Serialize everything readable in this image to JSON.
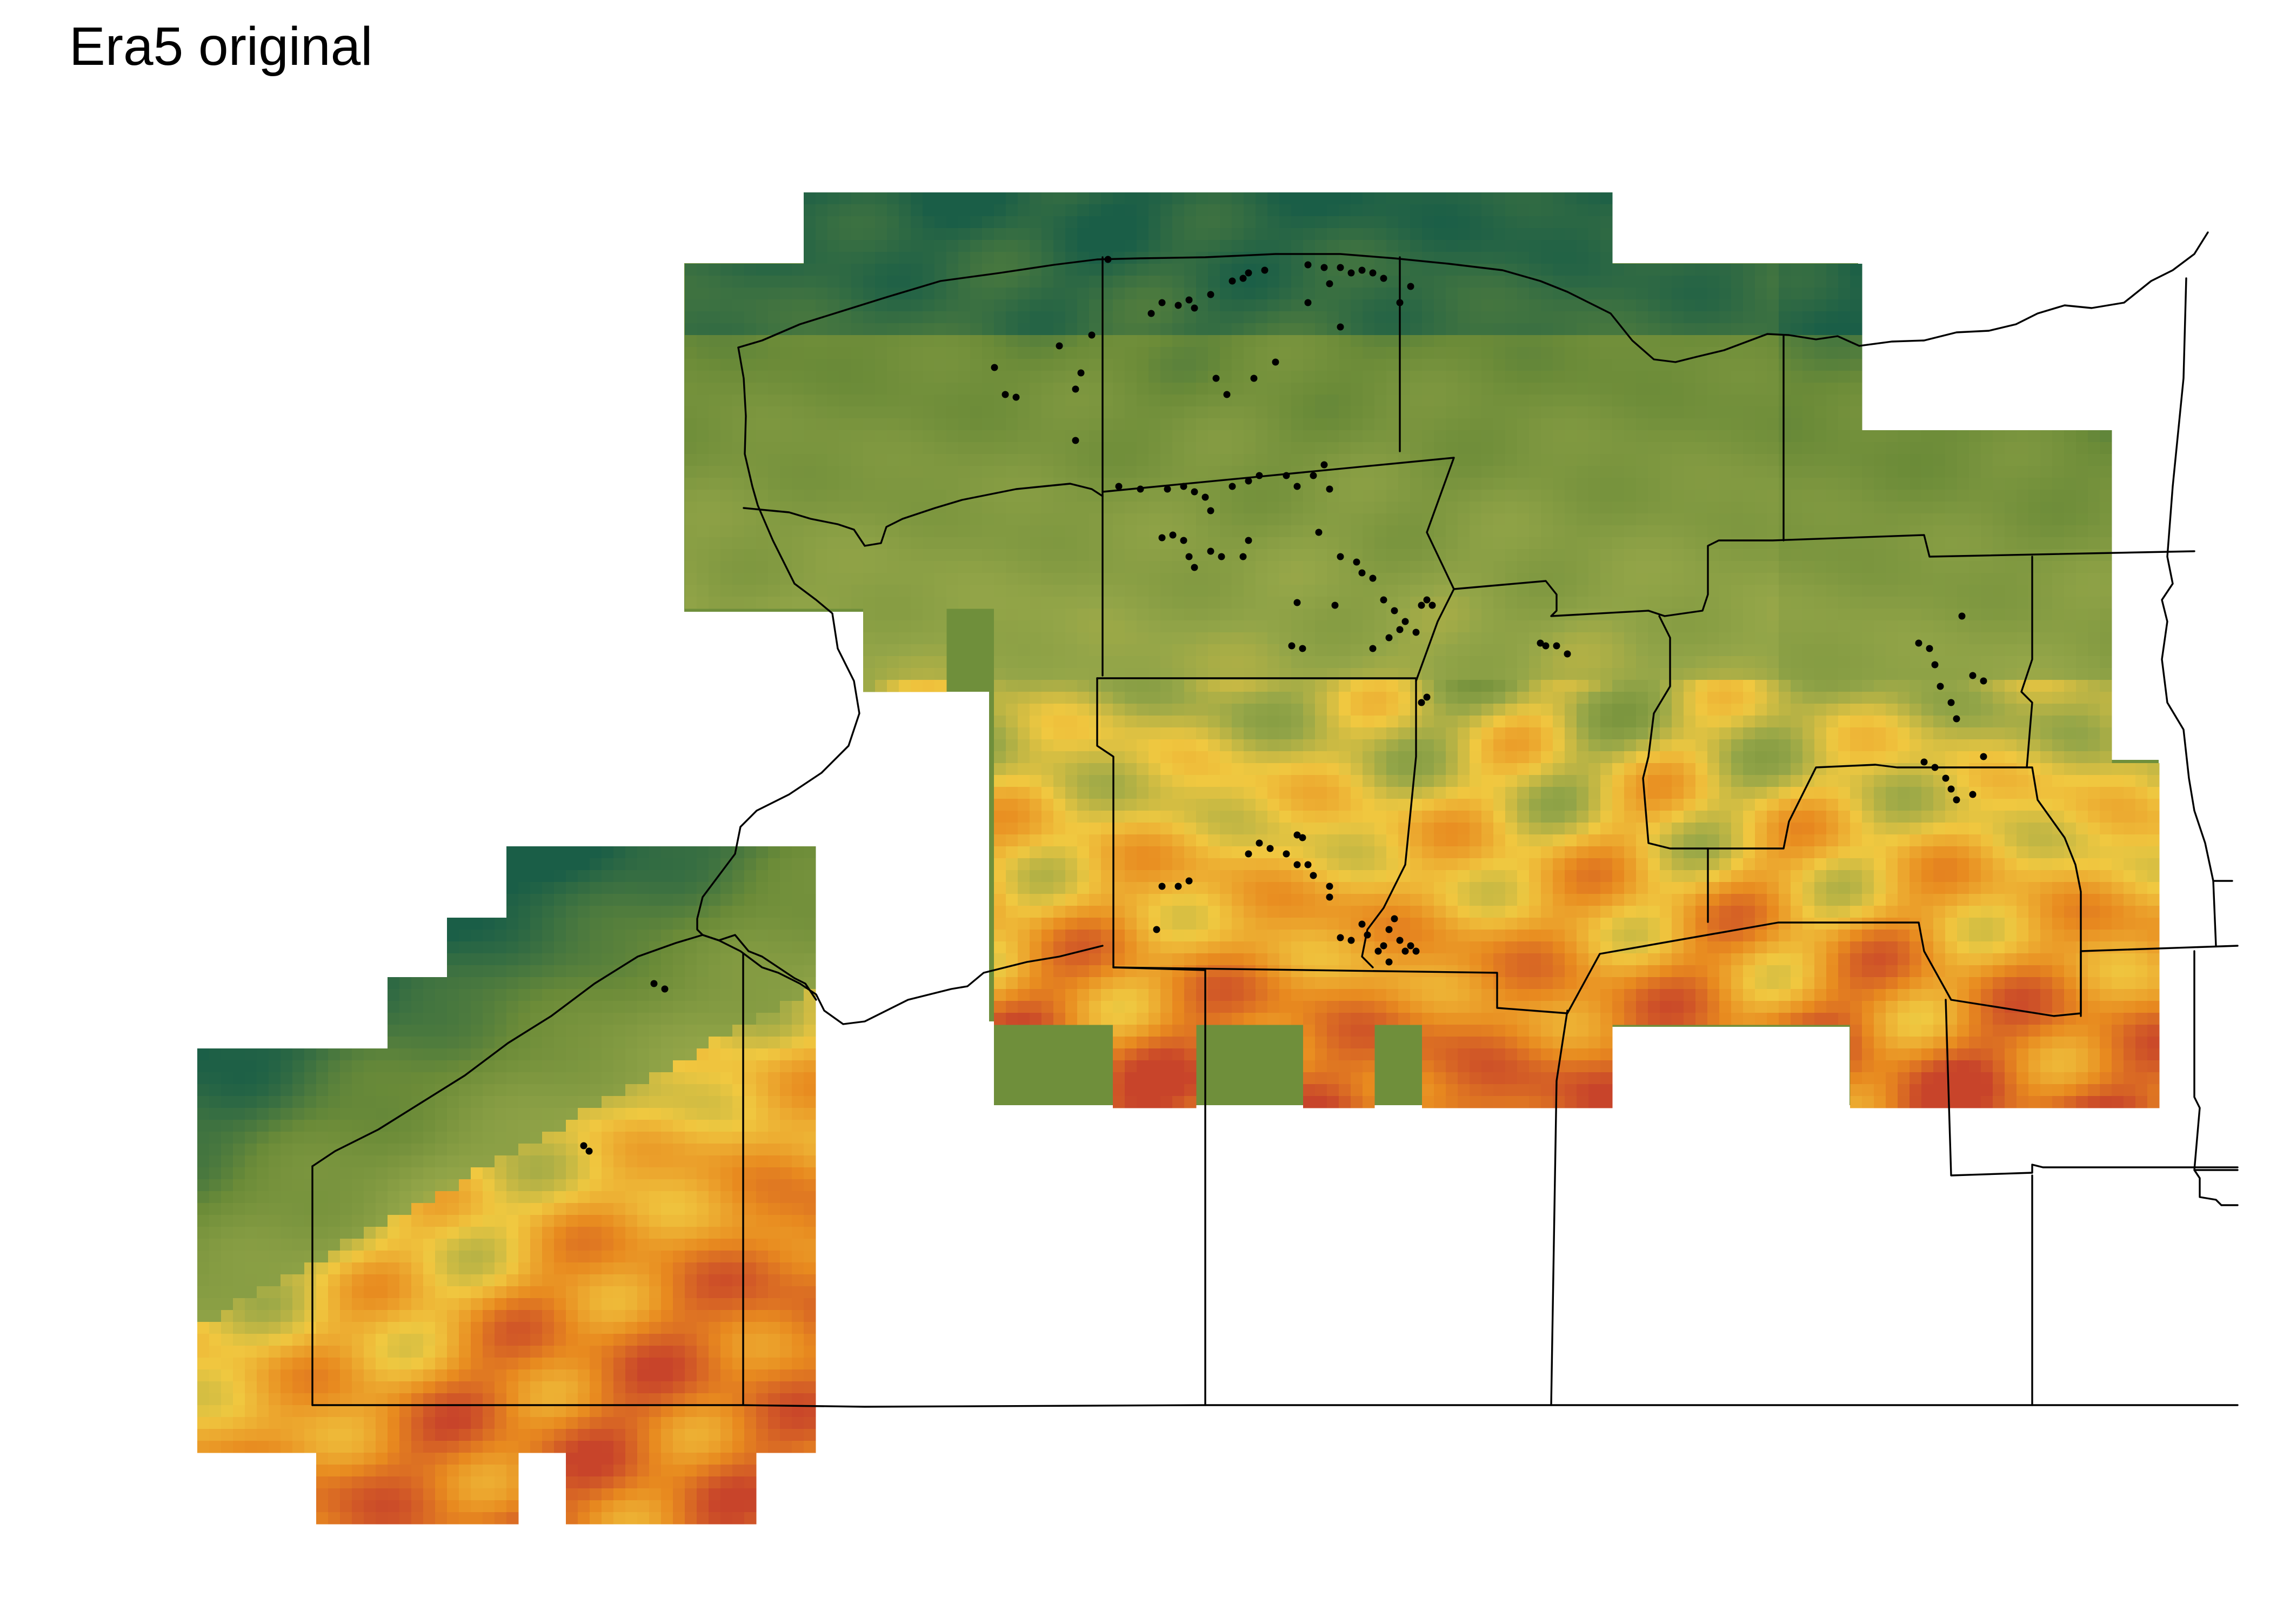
{
  "title": "Era5 original",
  "palette": {
    "low": "#1a5e47",
    "low_mid": "#6b8b38",
    "mid": "#93a548",
    "high_mid": "#f0c840",
    "high": "#e88a1f",
    "peak": "#c8442a"
  },
  "legend_shown": false,
  "axes_shown": false,
  "layers": [
    "elevation-raster",
    "county-boundaries",
    "observation-sites"
  ]
}
